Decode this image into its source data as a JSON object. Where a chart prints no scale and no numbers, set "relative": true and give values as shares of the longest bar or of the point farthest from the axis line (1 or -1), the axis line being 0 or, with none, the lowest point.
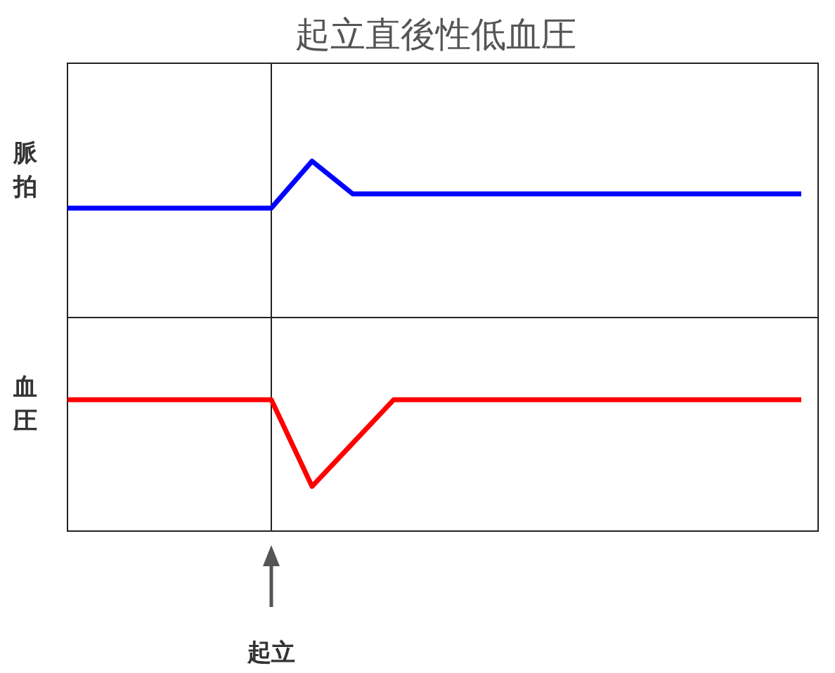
{
  "chart_data": [
    {
      "type": "line",
      "title": "起立直後性低血圧",
      "ylabel": "脈拍",
      "relative": true,
      "categories": [
        null,
        null,
        null,
        null,
        null,
        null,
        null,
        null,
        null,
        null,
        null,
        null,
        null,
        null,
        null,
        null,
        null,
        null,
        null
      ],
      "series": [
        {
          "color": "#0000ff",
          "values": [
            0.7,
            0.7,
            0.7,
            0.7,
            0.7,
            0.7,
            1,
            0.79,
            0.79,
            0.79,
            0.79,
            0.79,
            0.79,
            0.79,
            0.79,
            0.79,
            0.79,
            0.79,
            0.79
          ]
        }
      ]
    },
    {
      "type": "line",
      "ylabel": "血圧",
      "relative": true,
      "categories": [
        null,
        null,
        null,
        null,
        null,
        null,
        null,
        null,
        null,
        null,
        null,
        null,
        null,
        null,
        null,
        null,
        null,
        null,
        null
      ],
      "annotations": [
        "起立"
      ],
      "series": [
        {
          "color": "#ff0000",
          "values": [
            1,
            1,
            1,
            1,
            1,
            1,
            0.34,
            0.67,
            1,
            1,
            1,
            1,
            1,
            1,
            1,
            1,
            1,
            1,
            1
          ]
        }
      ]
    }
  ]
}
